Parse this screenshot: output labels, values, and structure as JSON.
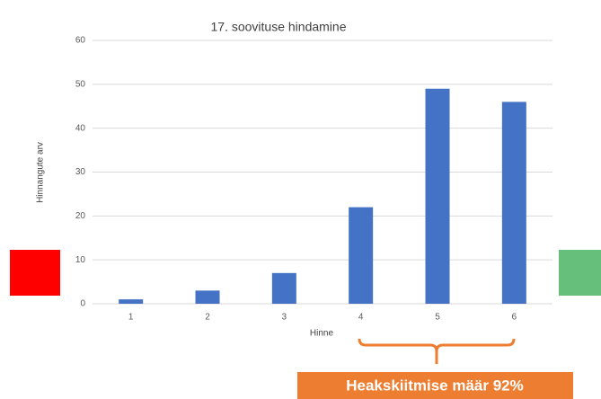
{
  "chart_data": {
    "type": "bar",
    "title": "17. soovituse hindamine",
    "x_label": "Hinne",
    "y_label": "Hinnangute arv",
    "categories": [
      "1",
      "2",
      "3",
      "4",
      "5",
      "6"
    ],
    "values": [
      1,
      3,
      7,
      22,
      49,
      46
    ],
    "color": "#4472c4",
    "ylim": [
      0,
      60
    ],
    "yticks": [
      0,
      10,
      20,
      30,
      40,
      50,
      60
    ],
    "grid": true,
    "annotation": "Heakskiitmise määr 92%"
  }
}
